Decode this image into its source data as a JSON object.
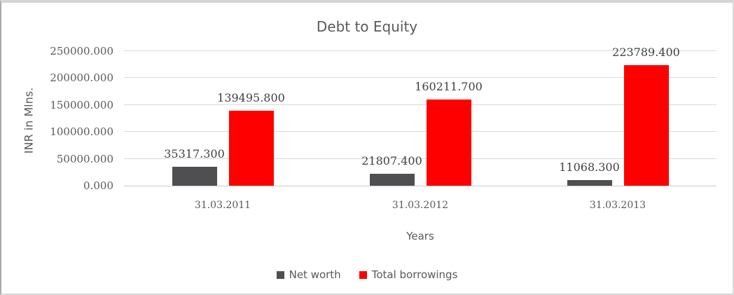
{
  "chart_data": {
    "type": "bar",
    "title": "Debt to Equity",
    "xlabel": "Years",
    "ylabel": "INR in Mlns.",
    "categories": [
      "31.03.2011",
      "31.03.2012",
      "31.03.2013"
    ],
    "series": [
      {
        "name": "Net worth",
        "color": "#4f4f51",
        "values": [
          35317.3,
          21807.4,
          11068.3
        ],
        "labels": [
          "35317.300",
          "21807.400",
          "11068.300"
        ]
      },
      {
        "name": "Total borrowings",
        "color": "#ff0000",
        "values": [
          139495.8,
          160211.7,
          223789.4
        ],
        "labels": [
          "139495.800",
          "160211.700",
          "223789.400"
        ]
      }
    ],
    "ylim": [
      0,
      250000
    ],
    "yticks": [
      "0.000",
      "50000.000",
      "100000.000",
      "150000.000",
      "200000.000",
      "250000.000"
    ],
    "grid": true,
    "legend_position": "bottom"
  },
  "colors": {
    "text_gray": "#595959",
    "data_label": "#404040",
    "gridline": "#d9d9d9",
    "axis_line": "#cbcbcb",
    "frame_border": "#d5d5d5"
  }
}
